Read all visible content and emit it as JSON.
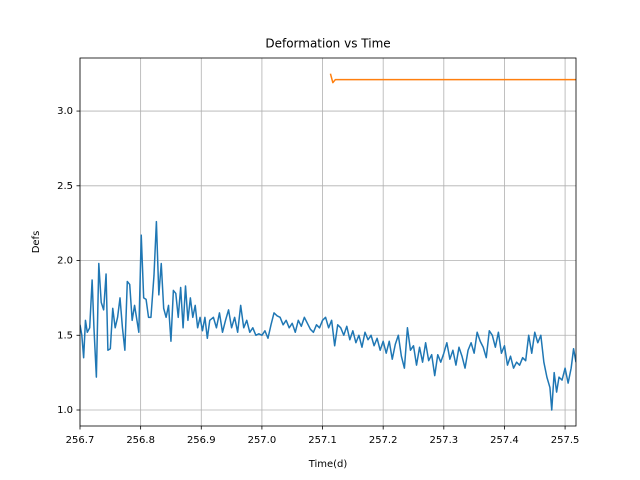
{
  "chart_data": {
    "type": "line",
    "title": "Deformation vs Time",
    "x_label": "Time(d)",
    "y_label": "Defs",
    "xlim": [
      256.7,
      257.518
    ],
    "ylim": [
      0.893,
      3.355
    ],
    "xticks": [
      256.7,
      256.8,
      256.9,
      {
        "value": 257,
        "label": "257.0"
      },
      257.1,
      257.2,
      257.3,
      257.4,
      257.5
    ],
    "yticks": [
      {
        "value": 1,
        "label": "1.0"
      },
      1.5,
      {
        "value": 2,
        "label": "2.0"
      },
      2.5,
      {
        "value": 3,
        "label": "3.0"
      }
    ],
    "grid": true,
    "series": [
      {
        "color": "#1f77b4",
        "x": [
          256.7,
          256.703,
          256.706,
          256.709,
          256.712,
          256.716,
          256.72,
          256.723,
          256.727,
          256.731,
          256.735,
          256.739,
          256.743,
          256.746,
          256.75,
          256.754,
          256.758,
          256.762,
          256.766,
          256.77,
          256.774,
          256.778,
          256.782,
          256.786,
          256.79,
          256.797,
          256.801,
          256.805,
          256.809,
          256.813,
          256.817,
          256.822,
          256.826,
          256.83,
          256.834,
          256.838,
          256.842,
          256.846,
          256.85,
          256.854,
          256.858,
          256.862,
          256.866,
          256.87,
          256.874,
          256.878,
          256.882,
          256.886,
          256.89,
          256.894,
          256.898,
          256.902,
          256.906,
          256.91,
          256.914,
          256.92,
          256.925,
          256.93,
          256.935,
          256.94,
          256.945,
          256.95,
          256.955,
          256.96,
          256.965,
          256.97,
          256.975,
          256.98,
          256.985,
          256.99,
          256.995,
          257.0,
          257.005,
          257.01,
          257.015,
          257.02,
          257.025,
          257.03,
          257.035,
          257.04,
          257.045,
          257.05,
          257.055,
          257.06,
          257.065,
          257.07,
          257.075,
          257.08,
          257.085,
          257.09,
          257.095,
          257.1,
          257.105,
          257.11,
          257.115,
          257.12,
          257.125,
          257.13,
          257.135,
          257.14,
          257.145,
          257.15,
          257.155,
          257.16,
          257.165,
          257.17,
          257.175,
          257.18,
          257.185,
          257.19,
          257.195,
          257.2,
          257.205,
          257.21,
          257.215,
          257.22,
          257.225,
          257.23,
          257.235,
          257.24,
          257.245,
          257.25,
          257.255,
          257.26,
          257.265,
          257.27,
          257.275,
          257.28,
          257.285,
          257.29,
          257.295,
          257.3,
          257.305,
          257.31,
          257.315,
          257.32,
          257.325,
          257.33,
          257.335,
          257.34,
          257.345,
          257.35,
          257.355,
          257.36,
          257.365,
          257.37,
          257.375,
          257.38,
          257.385,
          257.39,
          257.395,
          257.4,
          257.405,
          257.41,
          257.415,
          257.42,
          257.425,
          257.43,
          257.435,
          257.44,
          257.445,
          257.45,
          257.455,
          257.46,
          257.465,
          257.47,
          257.475,
          257.478,
          257.482,
          257.486,
          257.49,
          257.495,
          257.5,
          257.505,
          257.51,
          257.514,
          257.518
        ],
        "values": [
          1.57,
          1.5,
          1.35,
          1.6,
          1.52,
          1.55,
          1.87,
          1.55,
          1.22,
          1.98,
          1.72,
          1.67,
          1.91,
          1.4,
          1.41,
          1.68,
          1.55,
          1.62,
          1.75,
          1.55,
          1.4,
          1.86,
          1.84,
          1.6,
          1.7,
          1.52,
          2.17,
          1.75,
          1.74,
          1.62,
          1.62,
          1.9,
          2.26,
          1.77,
          1.98,
          1.68,
          1.62,
          1.7,
          1.46,
          1.8,
          1.78,
          1.62,
          1.82,
          1.55,
          1.83,
          1.6,
          1.75,
          1.62,
          1.7,
          1.55,
          1.62,
          1.53,
          1.62,
          1.48,
          1.6,
          1.62,
          1.55,
          1.65,
          1.52,
          1.6,
          1.67,
          1.55,
          1.62,
          1.52,
          1.7,
          1.55,
          1.6,
          1.52,
          1.55,
          1.5,
          1.51,
          1.5,
          1.53,
          1.48,
          1.57,
          1.65,
          1.63,
          1.62,
          1.57,
          1.6,
          1.55,
          1.58,
          1.52,
          1.6,
          1.56,
          1.62,
          1.58,
          1.54,
          1.52,
          1.57,
          1.55,
          1.6,
          1.62,
          1.55,
          1.6,
          1.43,
          1.57,
          1.55,
          1.5,
          1.56,
          1.47,
          1.53,
          1.45,
          1.5,
          1.42,
          1.52,
          1.47,
          1.5,
          1.43,
          1.48,
          1.4,
          1.46,
          1.38,
          1.46,
          1.34,
          1.44,
          1.5,
          1.36,
          1.28,
          1.55,
          1.4,
          1.43,
          1.3,
          1.42,
          1.32,
          1.45,
          1.33,
          1.37,
          1.23,
          1.37,
          1.32,
          1.38,
          1.45,
          1.34,
          1.4,
          1.3,
          1.42,
          1.36,
          1.28,
          1.4,
          1.45,
          1.38,
          1.52,
          1.46,
          1.42,
          1.35,
          1.53,
          1.5,
          1.42,
          1.52,
          1.38,
          1.43,
          1.3,
          1.36,
          1.28,
          1.32,
          1.3,
          1.35,
          1.33,
          1.5,
          1.38,
          1.52,
          1.45,
          1.5,
          1.32,
          1.22,
          1.15,
          1.0,
          1.25,
          1.12,
          1.22,
          1.2,
          1.28,
          1.18,
          1.28,
          1.41,
          1.32
        ]
      },
      {
        "color": "#ff7f0e",
        "x": [
          257.113,
          257.117,
          257.121,
          257.518
        ],
        "values": [
          3.25,
          3.19,
          3.21,
          3.21
        ]
      }
    ]
  }
}
